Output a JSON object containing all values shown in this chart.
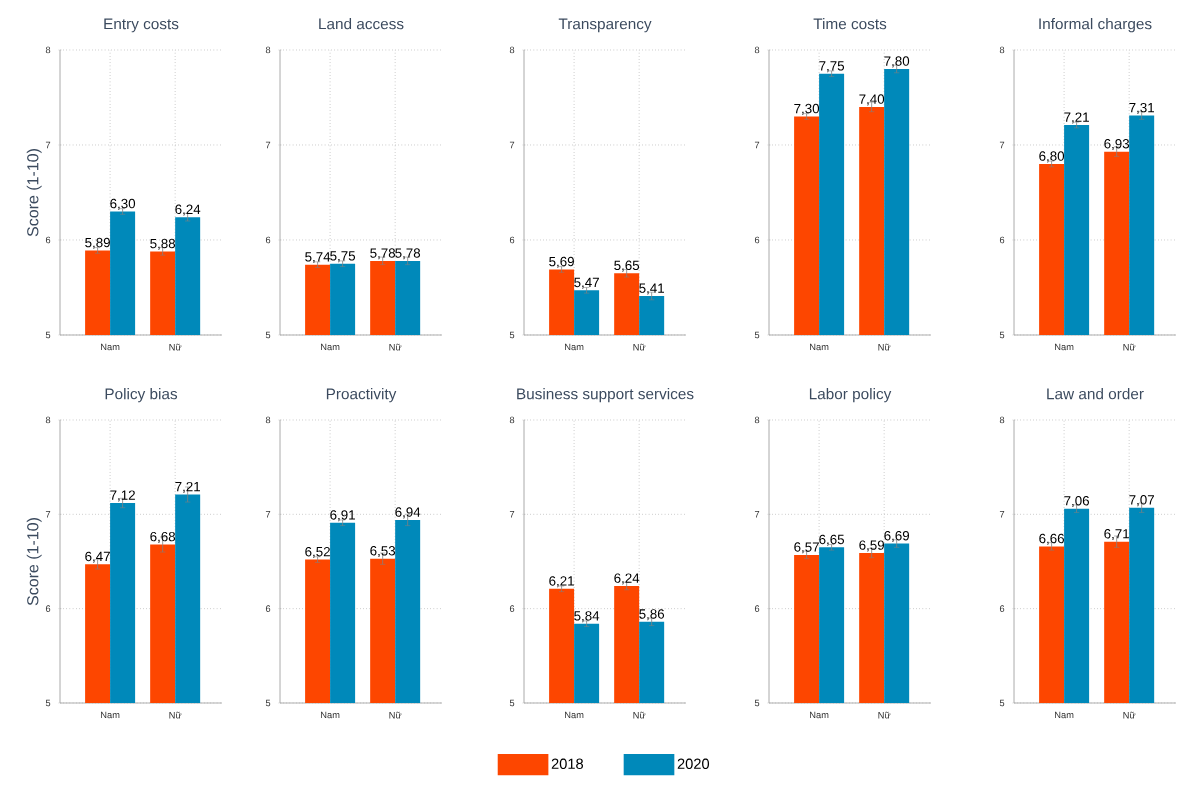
{
  "chart_data": [
    {
      "type": "bar",
      "title": "Entry costs",
      "ylabel": "Score (1-10)",
      "categories": [
        "Nam",
        "Nữ"
      ],
      "ylim": [
        5,
        8
      ],
      "yticks": [
        5,
        6,
        7,
        8
      ],
      "grid": true,
      "series": [
        {
          "color": "#fd4600",
          "values": [
            5.89,
            5.88
          ],
          "errors": [
            0.03,
            0.04
          ],
          "value_labels": [
            "5,89",
            "5,88"
          ]
        },
        {
          "color": "#0089ba",
          "values": [
            6.3,
            6.24
          ],
          "errors": [
            0.03,
            0.04
          ],
          "value_labels": [
            "6,30",
            "6,24"
          ]
        }
      ]
    },
    {
      "type": "bar",
      "title": "Land access",
      "categories": [
        "Nam",
        "Nữ"
      ],
      "ylim": [
        5,
        8
      ],
      "yticks": [
        5,
        6,
        7,
        8
      ],
      "grid": true,
      "series": [
        {
          "color": "#fd4600",
          "values": [
            5.74,
            5.78
          ],
          "errors": [
            0.03,
            0.04
          ],
          "value_labels": [
            "5,74",
            "5,78"
          ]
        },
        {
          "color": "#0089ba",
          "values": [
            5.75,
            5.78
          ],
          "errors": [
            0.03,
            0.04
          ],
          "value_labels": [
            "5,75",
            "5,78"
          ]
        }
      ]
    },
    {
      "type": "bar",
      "title": "Transparency",
      "categories": [
        "Nam",
        "Nữ"
      ],
      "ylim": [
        5,
        8
      ],
      "yticks": [
        5,
        6,
        7,
        8
      ],
      "grid": true,
      "series": [
        {
          "color": "#fd4600",
          "values": [
            5.69,
            5.65
          ],
          "errors": [
            0.03,
            0.04
          ],
          "value_labels": [
            "5,69",
            "5,65"
          ]
        },
        {
          "color": "#0089ba",
          "values": [
            5.47,
            5.41
          ],
          "errors": [
            0.03,
            0.04
          ],
          "value_labels": [
            "5,47",
            "5,41"
          ]
        }
      ]
    },
    {
      "type": "bar",
      "title": "Time costs",
      "categories": [
        "Nam",
        "Nữ"
      ],
      "ylim": [
        5,
        8
      ],
      "yticks": [
        5,
        6,
        7,
        8
      ],
      "grid": true,
      "series": [
        {
          "color": "#fd4600",
          "values": [
            7.3,
            7.4
          ],
          "errors": [
            0.03,
            0.05
          ],
          "value_labels": [
            "7,30",
            "7,40"
          ]
        },
        {
          "color": "#0089ba",
          "values": [
            7.75,
            7.8
          ],
          "errors": [
            0.03,
            0.04
          ],
          "value_labels": [
            "7,75",
            "7,80"
          ]
        }
      ]
    },
    {
      "type": "bar",
      "title": "Informal charges",
      "categories": [
        "Nam",
        "Nữ"
      ],
      "ylim": [
        5,
        8
      ],
      "yticks": [
        5,
        6,
        7,
        8
      ],
      "grid": true,
      "series": [
        {
          "color": "#fd4600",
          "values": [
            6.8,
            6.93
          ],
          "errors": [
            0.03,
            0.05
          ],
          "value_labels": [
            "6,80",
            "6,93"
          ]
        },
        {
          "color": "#0089ba",
          "values": [
            7.21,
            7.31
          ],
          "errors": [
            0.03,
            0.04
          ],
          "value_labels": [
            "7,21",
            "7,31"
          ]
        }
      ]
    },
    {
      "type": "bar",
      "title": "Policy bias",
      "ylabel": "Score (1-10)",
      "categories": [
        "Nam",
        "Nữ"
      ],
      "ylim": [
        5,
        8
      ],
      "yticks": [
        5,
        6,
        7,
        8
      ],
      "grid": true,
      "series": [
        {
          "color": "#fd4600",
          "values": [
            6.47,
            6.68
          ],
          "errors": [
            0.05,
            0.08
          ],
          "value_labels": [
            "6,47",
            "6,68"
          ]
        },
        {
          "color": "#0089ba",
          "values": [
            7.12,
            7.21
          ],
          "errors": [
            0.05,
            0.08
          ],
          "value_labels": [
            "7,12",
            "7,21"
          ]
        }
      ]
    },
    {
      "type": "bar",
      "title": "Proactivity",
      "categories": [
        "Nam",
        "Nữ"
      ],
      "ylim": [
        5,
        8
      ],
      "yticks": [
        5,
        6,
        7,
        8
      ],
      "grid": true,
      "series": [
        {
          "color": "#fd4600",
          "values": [
            6.52,
            6.53
          ],
          "errors": [
            0.03,
            0.06
          ],
          "value_labels": [
            "6,52",
            "6,53"
          ]
        },
        {
          "color": "#0089ba",
          "values": [
            6.91,
            6.94
          ],
          "errors": [
            0.03,
            0.06
          ],
          "value_labels": [
            "6,91",
            "6,94"
          ]
        }
      ]
    },
    {
      "type": "bar",
      "title": "Business support services",
      "categories": [
        "Nam",
        "Nữ"
      ],
      "ylim": [
        5,
        8
      ],
      "yticks": [
        5,
        6,
        7,
        8
      ],
      "grid": true,
      "legend": "bottom",
      "series": [
        {
          "name": "2018",
          "color": "#fd4600",
          "values": [
            6.21,
            6.24
          ],
          "errors": [
            0.03,
            0.04
          ],
          "value_labels": [
            "6,21",
            "6,24"
          ]
        },
        {
          "name": "2020",
          "color": "#0089ba",
          "values": [
            5.84,
            5.86
          ],
          "errors": [
            0.03,
            0.04
          ],
          "value_labels": [
            "5,84",
            "5,86"
          ]
        }
      ]
    },
    {
      "type": "bar",
      "title": "Labor policy",
      "categories": [
        "Nam",
        "Nữ"
      ],
      "ylim": [
        5,
        8
      ],
      "yticks": [
        5,
        6,
        7,
        8
      ],
      "grid": true,
      "series": [
        {
          "color": "#fd4600",
          "values": [
            6.57,
            6.59
          ],
          "errors": [
            0.04,
            0.05
          ],
          "value_labels": [
            "6,57",
            "6,59"
          ]
        },
        {
          "color": "#0089ba",
          "values": [
            6.65,
            6.69
          ],
          "errors": [
            0.03,
            0.04
          ],
          "value_labels": [
            "6,65",
            "6,69"
          ]
        }
      ]
    },
    {
      "type": "bar",
      "title": "Law and order",
      "categories": [
        "Nam",
        "Nữ"
      ],
      "ylim": [
        5,
        8
      ],
      "yticks": [
        5,
        6,
        7,
        8
      ],
      "grid": true,
      "series": [
        {
          "color": "#fd4600",
          "values": [
            6.66,
            6.71
          ],
          "errors": [
            0.04,
            0.06
          ],
          "value_labels": [
            "6,66",
            "6,71"
          ]
        },
        {
          "color": "#0089ba",
          "values": [
            7.06,
            7.07
          ],
          "errors": [
            0.04,
            0.05
          ],
          "value_labels": [
            "7,06",
            "7,07"
          ]
        }
      ]
    }
  ]
}
